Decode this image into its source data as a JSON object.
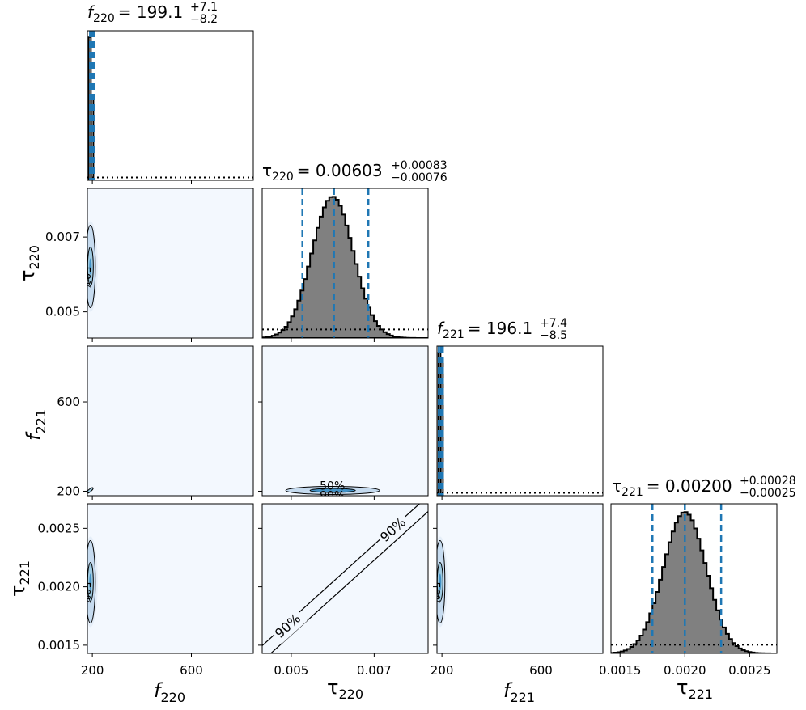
{
  "chart_data": {
    "type": "corner",
    "parameters": [
      {
        "key": "f220",
        "symbol": "f",
        "sub": "220",
        "median": "199.1",
        "plus": "+7.1",
        "minus": "−8.2"
      },
      {
        "key": "tau220",
        "symbol": "τ",
        "sub": "220",
        "median": "0.00603",
        "plus": "+0.00083",
        "minus": "−0.00076"
      },
      {
        "key": "f221",
        "symbol": "f",
        "sub": "221",
        "median": "196.1",
        "plus": "+7.4",
        "minus": "−8.5"
      },
      {
        "key": "tau221",
        "symbol": "τ",
        "sub": "221",
        "median": "0.00200",
        "plus": "+0.00028",
        "minus": "−0.00025"
      }
    ],
    "axes": {
      "f220": {
        "range": [
          180,
          850
        ],
        "ticks": [
          200,
          600
        ],
        "tick_labels": [
          "200",
          "600"
        ]
      },
      "tau220": {
        "range": [
          0.0043,
          0.0083
        ],
        "ticks": [
          0.005,
          0.007
        ],
        "tick_labels": [
          "0.005",
          "0.007"
        ]
      },
      "f221": {
        "range": [
          180,
          850
        ],
        "ticks": [
          200,
          600
        ],
        "tick_labels": [
          "200",
          "600"
        ]
      },
      "tau221": {
        "range": [
          0.00143,
          0.00271
        ],
        "ticks": [
          0.0015,
          0.002,
          0.0025
        ],
        "tick_labels": [
          "0.0015",
          "0.0020",
          "0.0025"
        ]
      }
    },
    "diagonal_histograms": [
      {
        "param": "f220",
        "bins": [
          [
            185,
            195,
            1.0
          ],
          [
            195,
            205,
            0.58
          ]
        ],
        "quantiles": [
          190.9,
          199.1,
          206.2
        ],
        "prior_level": 0.02
      },
      {
        "param": "tau220",
        "centre": 0.006,
        "sigma": 0.0005,
        "quantiles": [
          0.00527,
          0.00603,
          0.00686
        ],
        "prior_level": 0.06
      },
      {
        "param": "f221",
        "bins": [
          [
            185,
            195,
            1.0
          ],
          [
            195,
            205,
            0.96
          ]
        ],
        "quantiles": [
          187.6,
          196.1,
          203.5
        ],
        "prior_level": 0.02
      },
      {
        "param": "tau221",
        "centre": 0.002,
        "sigma": 0.000165,
        "quantiles": [
          0.00175,
          0.002,
          0.00228
        ],
        "prior_level": 0.06
      }
    ],
    "contour_labels": [
      "50%",
      "90%"
    ],
    "colors": {
      "hist_fill": "#808080",
      "quantile_line": "#1f77b4",
      "contour_fill": "#9ecae1",
      "background": "#f3f8fe"
    }
  }
}
